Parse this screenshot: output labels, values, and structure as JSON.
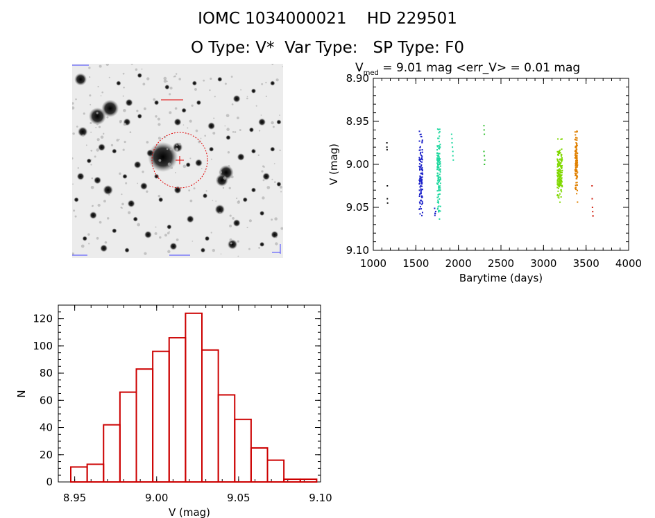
{
  "header": {
    "line1": "IOMC 1034000021    HD 229501",
    "line2": "O Type: V*  Var Type:   SP Type: F0"
  },
  "sky_image": {
    "stars": [
      [
        0.04,
        0.08,
        5
      ],
      [
        0.27,
        0.2,
        3
      ],
      [
        0.4,
        0.2,
        2
      ],
      [
        0.05,
        0.35,
        4
      ],
      [
        0.18,
        0.23,
        7
      ],
      [
        0.12,
        0.27,
        7
      ],
      [
        0.26,
        0.3,
        3
      ],
      [
        0.32,
        0.27,
        2
      ],
      [
        0.5,
        0.3,
        3
      ],
      [
        0.53,
        0.24,
        2
      ],
      [
        0.6,
        0.2,
        2
      ],
      [
        0.66,
        0.32,
        3
      ],
      [
        0.78,
        0.18,
        3
      ],
      [
        0.86,
        0.14,
        2
      ],
      [
        0.9,
        0.3,
        3
      ],
      [
        0.95,
        0.1,
        2
      ],
      [
        0.85,
        0.34,
        2
      ],
      [
        0.43,
        0.48,
        12
      ],
      [
        0.37,
        0.46,
        3
      ],
      [
        0.5,
        0.43,
        4
      ],
      [
        0.6,
        0.51,
        3
      ],
      [
        0.55,
        0.52,
        2
      ],
      [
        0.31,
        0.52,
        3
      ],
      [
        0.2,
        0.45,
        2
      ],
      [
        0.14,
        0.43,
        3
      ],
      [
        0.25,
        0.58,
        2
      ],
      [
        0.17,
        0.65,
        4
      ],
      [
        0.12,
        0.6,
        3
      ],
      [
        0.04,
        0.58,
        3
      ],
      [
        0.28,
        0.72,
        3
      ],
      [
        0.34,
        0.63,
        3
      ],
      [
        0.42,
        0.7,
        2
      ],
      [
        0.5,
        0.65,
        3
      ],
      [
        0.73,
        0.56,
        6
      ],
      [
        0.8,
        0.48,
        3
      ],
      [
        0.86,
        0.45,
        2
      ],
      [
        0.95,
        0.44,
        2
      ],
      [
        0.92,
        0.58,
        3
      ],
      [
        0.86,
        0.65,
        2
      ],
      [
        0.71,
        0.6,
        5
      ],
      [
        0.63,
        0.68,
        2
      ],
      [
        0.7,
        0.75,
        4
      ],
      [
        0.78,
        0.82,
        3
      ],
      [
        0.9,
        0.77,
        2
      ],
      [
        0.96,
        0.88,
        3
      ],
      [
        0.1,
        0.78,
        3
      ],
      [
        0.2,
        0.86,
        2
      ],
      [
        0.3,
        0.8,
        2
      ],
      [
        0.36,
        0.88,
        3
      ],
      [
        0.46,
        0.84,
        2
      ],
      [
        0.56,
        0.8,
        3
      ],
      [
        0.64,
        0.9,
        2
      ],
      [
        0.06,
        0.9,
        2
      ],
      [
        0.15,
        0.95,
        3
      ],
      [
        0.26,
        0.96,
        2
      ],
      [
        0.48,
        0.94,
        3
      ],
      [
        0.62,
        0.96,
        2
      ],
      [
        0.76,
        0.93,
        4
      ],
      [
        0.9,
        0.93,
        2
      ],
      [
        0.98,
        0.3,
        2
      ],
      [
        0.08,
        0.5,
        2
      ],
      [
        0.58,
        0.1,
        2
      ],
      [
        0.7,
        0.08,
        2
      ],
      [
        0.32,
        0.06,
        2
      ],
      [
        0.45,
        0.12,
        2
      ],
      [
        0.22,
        0.1,
        2
      ],
      [
        0.98,
        0.62,
        2
      ],
      [
        0.02,
        0.7,
        2
      ],
      [
        0.4,
        0.58,
        2
      ],
      [
        0.66,
        0.44,
        2
      ],
      [
        0.74,
        0.38,
        2
      ],
      [
        0.82,
        0.7,
        2
      ]
    ]
  },
  "chart_data": [
    {
      "type": "scatter",
      "title_prefix": "V",
      "title_sub": "med",
      "title_rest": " = 9.01 mag <err_V> = 0.01 mag",
      "xlabel": "Barytime (days)",
      "ylabel": "V (mag)",
      "xlim": [
        1000,
        4000
      ],
      "ylim": [
        9.1,
        8.9
      ],
      "y_reversed": true,
      "xticks": [
        1000,
        1500,
        2000,
        2500,
        3000,
        3500,
        4000
      ],
      "yticks": [
        8.9,
        8.95,
        9.0,
        9.05,
        9.1
      ],
      "colors": [
        "#101010",
        "#1a20c8",
        "#20d8a0",
        "#30c030",
        "#80d800",
        "#e08000",
        "#d02010"
      ],
      "groups": [
        {
          "color": 0,
          "points": [
            [
              1160,
              8.975
            ],
            [
              1160,
              8.98
            ],
            [
              1162,
              8.983
            ],
            [
              1165,
              9.025
            ],
            [
              1165,
              9.04
            ],
            [
              1168,
              9.045
            ]
          ]
        },
        {
          "color": 1,
          "spread": [
            1540,
            1580
          ],
          "yrange": [
            8.945,
            9.08
          ],
          "count": 110
        },
        {
          "color": 1,
          "spread": [
            1720,
            1740
          ],
          "yrange": [
            9.05,
            9.065
          ],
          "count": 6
        },
        {
          "color": 2,
          "spread": [
            1750,
            1790
          ],
          "yrange": [
            8.94,
            9.08
          ],
          "count": 130
        },
        {
          "color": 2,
          "points": [
            [
              1920,
              8.965
            ],
            [
              1925,
              8.97
            ],
            [
              1925,
              8.975
            ],
            [
              1930,
              8.98
            ],
            [
              1935,
              8.985
            ],
            [
              1935,
              8.99
            ],
            [
              1940,
              8.995
            ]
          ]
        },
        {
          "color": 3,
          "points": [
            [
              2300,
              8.955
            ],
            [
              2302,
              8.96
            ],
            [
              2305,
              8.965
            ],
            [
              2300,
              8.985
            ],
            [
              2305,
              8.99
            ],
            [
              2310,
              8.995
            ],
            [
              2306,
              9.0
            ]
          ]
        },
        {
          "color": 4,
          "spread": [
            3160,
            3220
          ],
          "yrange": [
            8.965,
            9.055
          ],
          "count": 170
        },
        {
          "color": 5,
          "spread": [
            3370,
            3400
          ],
          "yrange": [
            8.945,
            9.05
          ],
          "count": 110
        },
        {
          "color": 6,
          "points": [
            [
              3570,
              9.025
            ],
            [
              3572,
              9.04
            ],
            [
              3575,
              9.05
            ],
            [
              3578,
              9.055
            ],
            [
              3580,
              9.06
            ],
            [
              3582,
              9.06
            ]
          ]
        }
      ]
    },
    {
      "type": "bar",
      "xlabel": "V (mag)",
      "ylabel": "N",
      "xlim": [
        8.94,
        9.1
      ],
      "ylim": [
        0,
        130
      ],
      "xticks": [
        8.95,
        9.0,
        9.05,
        9.1
      ],
      "yticks": [
        0,
        20,
        40,
        60,
        80,
        100,
        120
      ],
      "bin_width": 0.01,
      "bin_start": 8.94,
      "values": [
        11,
        13,
        42,
        66,
        83,
        96,
        106,
        124,
        97,
        64,
        46,
        25,
        16,
        2,
        2
      ],
      "bar_color": "#cc0000"
    }
  ]
}
